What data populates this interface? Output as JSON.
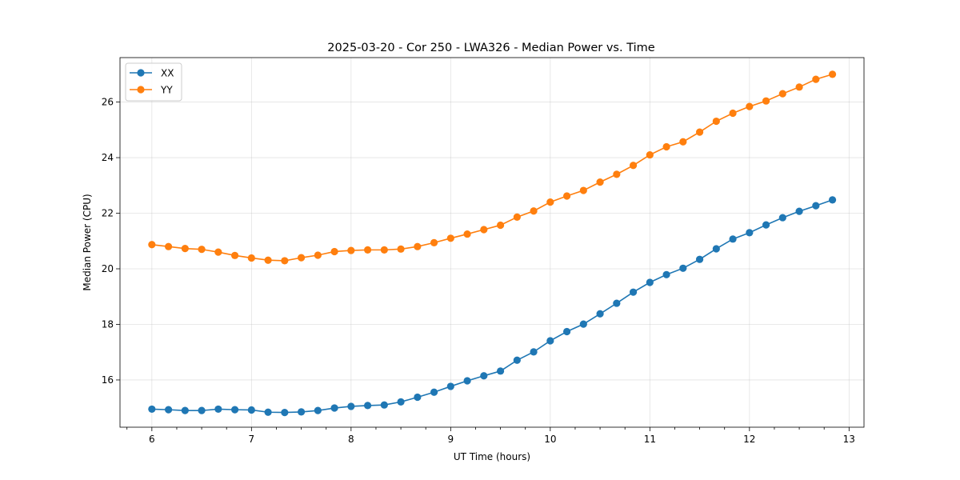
{
  "chart_data": {
    "type": "line",
    "title": "2025-03-20 - Cor 250 - LWA326 - Median Power vs. Time",
    "xlabel": "UT Time (hours)",
    "ylabel": "Median Power (CPU)",
    "xlim": [
      5.68,
      13.15
    ],
    "ylim": [
      14.3,
      27.6
    ],
    "xticks": [
      6,
      7,
      8,
      9,
      10,
      11,
      12,
      13
    ],
    "xticks_minor": [
      5.75,
      6.25,
      6.5,
      6.75,
      7.25,
      7.5,
      7.75,
      8.25,
      8.5,
      8.75,
      9.25,
      9.5,
      9.75,
      10.25,
      10.5,
      10.75,
      11.25,
      11.5,
      11.75,
      12.25,
      12.5,
      12.75,
      13.25
    ],
    "yticks": [
      16,
      18,
      20,
      22,
      24,
      26
    ],
    "grid": true,
    "legend_location": "top-left",
    "series": [
      {
        "name": "XX",
        "color": "#1f77b4",
        "x": [
          6.0,
          6.1667,
          6.3333,
          6.5,
          6.6667,
          6.8333,
          7.0,
          7.1667,
          7.3333,
          7.5,
          7.6667,
          7.8333,
          8.0,
          8.1667,
          8.3333,
          8.5,
          8.6667,
          8.8333,
          9.0,
          9.1667,
          9.3333,
          9.5,
          9.6667,
          9.8333,
          10.0,
          10.1667,
          10.3333,
          10.5,
          10.6667,
          10.8333,
          11.0,
          11.1667,
          11.3333,
          11.5,
          11.6667,
          11.8333,
          12.0,
          12.1667,
          12.3333,
          12.5,
          12.6667,
          12.8333
        ],
        "values": [
          14.95,
          14.93,
          14.9,
          14.9,
          14.95,
          14.93,
          14.92,
          14.84,
          14.83,
          14.85,
          14.9,
          14.99,
          15.05,
          15.08,
          15.1,
          15.21,
          15.38,
          15.56,
          15.77,
          15.97,
          16.15,
          16.32,
          16.71,
          17.01,
          17.41,
          17.74,
          18.01,
          18.38,
          18.76,
          19.16,
          19.51,
          19.79,
          20.02,
          20.34,
          20.72,
          21.07,
          21.3,
          21.58,
          21.84,
          22.07,
          22.27,
          22.48
        ]
      },
      {
        "name": "YY",
        "color": "#ff7f0e",
        "x": [
          6.0,
          6.1667,
          6.3333,
          6.5,
          6.6667,
          6.8333,
          7.0,
          7.1667,
          7.3333,
          7.5,
          7.6667,
          7.8333,
          8.0,
          8.1667,
          8.3333,
          8.5,
          8.6667,
          8.8333,
          9.0,
          9.1667,
          9.3333,
          9.5,
          9.6667,
          9.8333,
          10.0,
          10.1667,
          10.3333,
          10.5,
          10.6667,
          10.8333,
          11.0,
          11.1667,
          11.3333,
          11.5,
          11.6667,
          11.8333,
          12.0,
          12.1667,
          12.3333,
          12.5,
          12.6667,
          12.8333
        ],
        "values": [
          20.87,
          20.8,
          20.73,
          20.7,
          20.6,
          20.48,
          20.39,
          20.31,
          20.29,
          20.4,
          20.49,
          20.62,
          20.66,
          20.68,
          20.68,
          20.71,
          20.8,
          20.94,
          21.1,
          21.25,
          21.41,
          21.57,
          21.86,
          22.08,
          22.4,
          22.62,
          22.82,
          23.12,
          23.4,
          23.72,
          24.1,
          24.39,
          24.57,
          24.92,
          25.31,
          25.6,
          25.84,
          26.04,
          26.3,
          26.54,
          26.82,
          27.0
        ]
      }
    ]
  }
}
